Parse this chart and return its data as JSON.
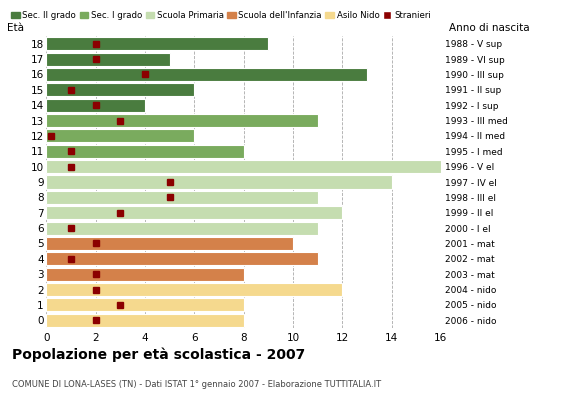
{
  "ages": [
    18,
    17,
    16,
    15,
    14,
    13,
    12,
    11,
    10,
    9,
    8,
    7,
    6,
    5,
    4,
    3,
    2,
    1,
    0
  ],
  "right_labels": [
    "1988 - V sup",
    "1989 - VI sup",
    "1990 - III sup",
    "1991 - II sup",
    "1992 - I sup",
    "1993 - III med",
    "1994 - II med",
    "1995 - I med",
    "1996 - V el",
    "1997 - IV el",
    "1998 - III el",
    "1999 - II el",
    "2000 - I el",
    "2001 - mat",
    "2002 - mat",
    "2003 - mat",
    "2004 - nido",
    "2005 - nido",
    "2006 - nido"
  ],
  "bar_values": [
    9,
    5,
    13,
    6,
    4,
    11,
    6,
    8,
    16,
    14,
    11,
    12,
    11,
    10,
    11,
    8,
    12,
    8,
    8
  ],
  "stranieri": [
    2,
    2,
    4,
    1,
    2,
    3,
    0.2,
    1,
    1,
    5,
    5,
    3,
    1,
    2,
    1,
    2,
    2,
    3,
    2
  ],
  "categories": {
    "Sec. II grado": {
      "ages": [
        14,
        15,
        16,
        17,
        18
      ],
      "color": "#4a7c3f"
    },
    "Sec. I grado": {
      "ages": [
        11,
        12,
        13
      ],
      "color": "#7aab5e"
    },
    "Scuola Primaria": {
      "ages": [
        6,
        7,
        8,
        9,
        10
      ],
      "color": "#c5ddb0"
    },
    "Scuola dell'Infanzia": {
      "ages": [
        3,
        4,
        5
      ],
      "color": "#d4814a"
    },
    "Asilo Nido": {
      "ages": [
        0,
        1,
        2
      ],
      "color": "#f5d98e"
    }
  },
  "stranieri_color": "#8b0000",
  "title": "Popolazione per età scolastica - 2007",
  "subtitle": "COMUNE DI LONA-LASES (TN) - Dati ISTAT 1° gennaio 2007 - Elaborazione TUTTITALIA.IT",
  "xlim": [
    0,
    16
  ],
  "xticks": [
    0,
    2,
    4,
    6,
    8,
    10,
    12,
    14,
    16
  ],
  "legend_labels": [
    "Sec. II grado",
    "Sec. I grado",
    "Scuola Primaria",
    "Scuola dell'Infanzia",
    "Asilo Nido",
    "Stranieri"
  ],
  "legend_colors": [
    "#4a7c3f",
    "#7aab5e",
    "#c5ddb0",
    "#d4814a",
    "#f5d98e",
    "#8b0000"
  ],
  "background_color": "#ffffff",
  "eta_label": "Età",
  "anno_label": "Anno di nascita"
}
